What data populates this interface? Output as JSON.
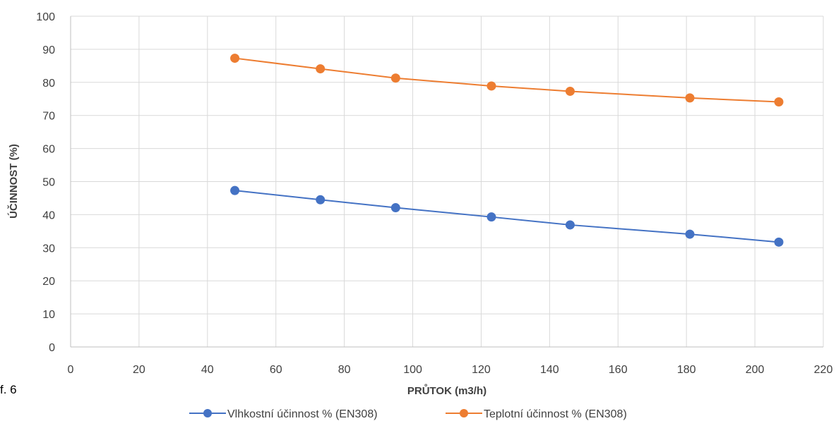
{
  "figure_label": "f. 6",
  "chart_data": {
    "type": "line",
    "title": "",
    "xlabel": "PRŮTOK (m3/h)",
    "ylabel": "ÚČINNOST (%)",
    "xlim": [
      0,
      220
    ],
    "ylim": [
      0,
      100
    ],
    "x_ticks": [
      0,
      20,
      40,
      60,
      80,
      100,
      120,
      140,
      160,
      180,
      200,
      220
    ],
    "y_ticks": [
      0,
      10,
      20,
      30,
      40,
      50,
      60,
      70,
      80,
      90,
      100
    ],
    "grid": true,
    "legend_position": "bottom",
    "series": [
      {
        "name": "Vlhkostní účinnost % (EN308)",
        "color": "#4472C4",
        "x": [
          48,
          73,
          95,
          123,
          146,
          181,
          207
        ],
        "y": [
          47.3,
          44.5,
          42.1,
          39.3,
          36.9,
          34.1,
          31.7
        ]
      },
      {
        "name": "Teplotní účinnost % (EN308)",
        "color": "#ED7D31",
        "x": [
          48,
          73,
          95,
          123,
          146,
          181,
          207
        ],
        "y": [
          87.3,
          84.1,
          81.3,
          78.9,
          77.3,
          75.3,
          74.1
        ]
      }
    ]
  }
}
